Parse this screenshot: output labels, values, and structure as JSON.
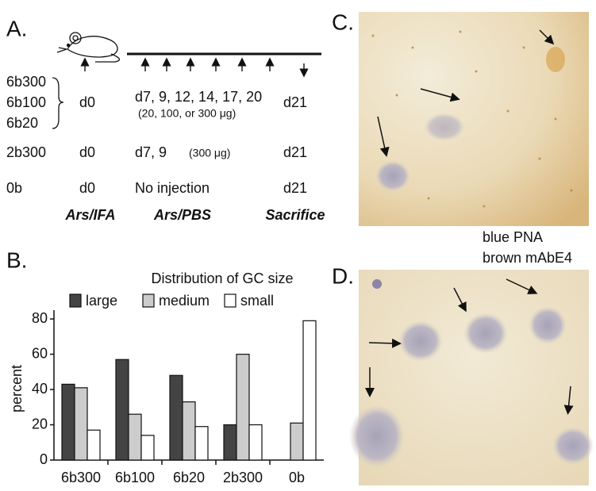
{
  "panel_a": {
    "label": "A.",
    "rows": [
      {
        "groups": [
          "6b300",
          "6b100",
          "6b20"
        ],
        "prime": "d0",
        "boost": "d7, 9, 12, 14, 17, 20",
        "dose": "(20, 100, or 300 μg)",
        "sacrifice": "d21"
      },
      {
        "groups": [
          "2b300"
        ],
        "prime": "d0",
        "boost": "d7, 9",
        "dose": "(300 μg)",
        "sacrifice": "d21"
      },
      {
        "groups": [
          "0b"
        ],
        "prime": "d0",
        "boost": "No injection",
        "sacrifice": "d21"
      }
    ],
    "columns": [
      "Ars/IFA",
      "Ars/PBS",
      "Sacrifice"
    ]
  },
  "panel_b": {
    "label": "B."
  },
  "chart_data": {
    "type": "bar",
    "title": "Distribution of GC size",
    "y_label": "percent",
    "categories": [
      "6b300",
      "6b100",
      "6b20",
      "2b300",
      "0b"
    ],
    "series": [
      {
        "name": "large",
        "color": "#444444",
        "values": [
          43,
          57,
          48,
          20,
          0
        ]
      },
      {
        "name": "medium",
        "color": "#cccccc",
        "values": [
          41,
          26,
          33,
          60,
          21
        ]
      },
      {
        "name": "small",
        "color": "#ffffff",
        "values": [
          17,
          14,
          19,
          20,
          79
        ]
      }
    ],
    "ylim": [
      0,
      85
    ],
    "yticks": [
      0,
      20,
      40,
      60,
      80
    ],
    "grid": false
  },
  "panel_c": {
    "label": "C.",
    "caption": [
      "blue PNA",
      "brown mAbE4"
    ]
  },
  "panel_d": {
    "label": "D."
  }
}
